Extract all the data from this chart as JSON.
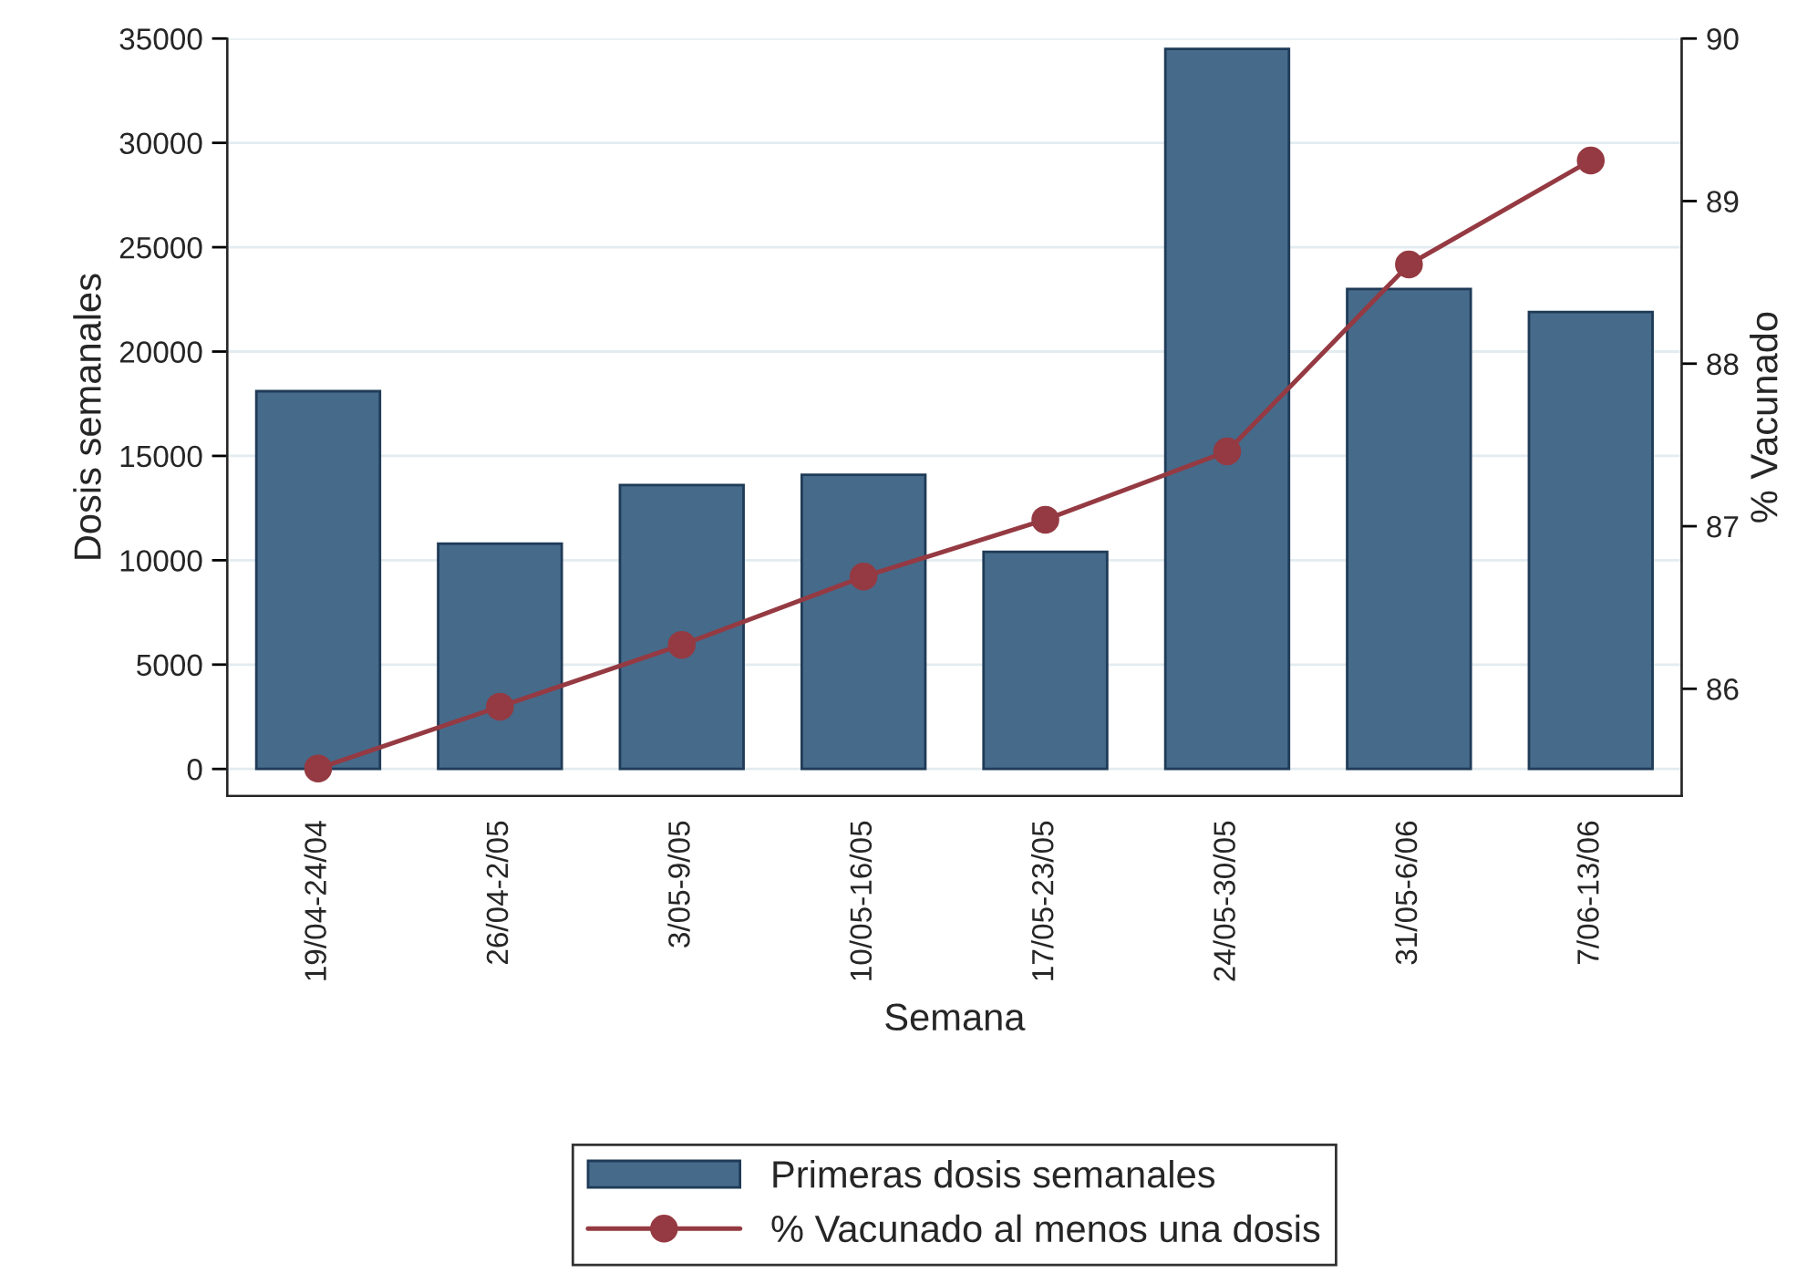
{
  "chart_data": {
    "type": "bar",
    "xlabel": "Semana",
    "ylabel": "Dosis semanales",
    "y2label": "% Vacunado",
    "categories": [
      "19/04-24/04",
      "26/04-2/05",
      "3/05-9/05",
      "10/05-16/05",
      "17/05-23/05",
      "24/05-30/05",
      "31/05-6/06",
      "7/06-13/06"
    ],
    "series": [
      {
        "name": "Primeras dosis semanales",
        "color": "#466a8a",
        "values": [
          18100,
          10800,
          13600,
          14100,
          10400,
          34500,
          23000,
          21900
        ]
      },
      {
        "name": "% Vacunado al menos una dosis",
        "type": "line",
        "axis": "y2",
        "color": "#953a42",
        "marker": "circle",
        "values": [
          85.51,
          85.89,
          86.27,
          86.69,
          87.04,
          87.46,
          88.61,
          89.25
        ]
      }
    ],
    "ylim": [
      -1300,
      35000
    ],
    "yticks": [
      0,
      5000,
      10000,
      15000,
      20000,
      25000,
      30000,
      35000
    ],
    "y2lim": [
      85.34,
      90
    ],
    "y2ticks": [
      86,
      87,
      88,
      89,
      90
    ],
    "grid": "y",
    "legend": "bottom"
  }
}
